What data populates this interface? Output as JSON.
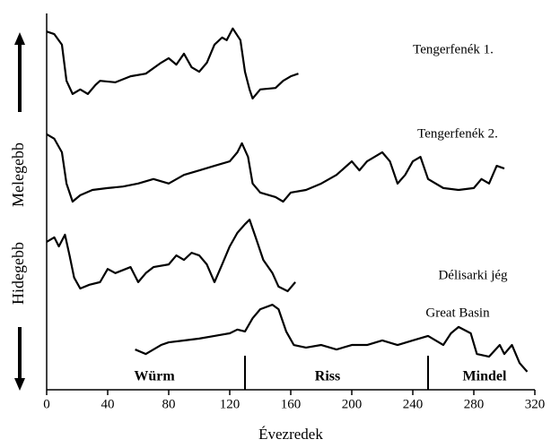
{
  "chart_data": {
    "type": "line",
    "x_label": "Évezredek",
    "y_label_low": "Hidegebb",
    "y_label_high": "Melegebb",
    "xlim": [
      0,
      320
    ],
    "xticks": [
      0,
      40,
      80,
      120,
      160,
      200,
      240,
      280,
      320
    ],
    "ylim": [
      0,
      100
    ],
    "boundaries": [
      130,
      250
    ],
    "stages": [
      "Würm",
      "Riss",
      "Mindel"
    ],
    "series": [
      {
        "name": "Tengerfenék 1.",
        "color": "#000000",
        "x": [
          0,
          5,
          10,
          13,
          17,
          22,
          27,
          32,
          35,
          45,
          55,
          65,
          75,
          80,
          85,
          90,
          95,
          100,
          105,
          110,
          115,
          118,
          122,
          127,
          130,
          133,
          135,
          140,
          150,
          155,
          160,
          165
        ],
        "values": [
          95.2,
          94.5,
          91.7,
          82.1,
          78.6,
          79.8,
          78.6,
          81,
          82.1,
          81.7,
          83.3,
          84,
          86.9,
          88.1,
          86.4,
          89.3,
          85.7,
          84.5,
          86.9,
          91.7,
          93.6,
          92.9,
          96,
          92.9,
          84.5,
          79.8,
          77.4,
          79.8,
          80.2,
          82.1,
          83.3,
          84
        ]
      },
      {
        "name": "Tengerfenék 2.",
        "color": "#000000",
        "x": [
          0,
          5,
          10,
          13,
          17,
          22,
          30,
          40,
          50,
          60,
          70,
          80,
          90,
          100,
          110,
          120,
          125,
          128,
          132,
          135,
          140,
          150,
          155,
          160,
          170,
          180,
          190,
          200,
          205,
          210,
          220,
          225,
          230,
          235,
          240,
          245,
          250,
          260,
          270,
          280,
          285,
          290,
          295,
          300
        ],
        "values": [
          67.9,
          66.7,
          63.1,
          54.8,
          50,
          51.7,
          53.1,
          53.6,
          54,
          54.8,
          56,
          54.8,
          57.1,
          58.3,
          59.5,
          60.7,
          63.1,
          65.5,
          61.9,
          54.8,
          52.4,
          51.2,
          50,
          52.4,
          53.1,
          54.8,
          57.1,
          60.7,
          58.3,
          60.7,
          63.1,
          60.7,
          54.8,
          57.1,
          60.7,
          61.9,
          56,
          53.6,
          53.1,
          53.6,
          56,
          54.8,
          59.5,
          58.8
        ]
      },
      {
        "name": "Délisarki jég",
        "color": "#000000",
        "x": [
          0,
          5,
          8,
          12,
          15,
          18,
          22,
          28,
          35,
          40,
          45,
          55,
          60,
          65,
          70,
          80,
          85,
          90,
          95,
          100,
          105,
          110,
          115,
          120,
          125,
          130,
          133,
          137,
          142,
          148,
          152,
          158,
          163
        ],
        "values": [
          39.3,
          40.5,
          38.1,
          41.2,
          35.7,
          29.8,
          26.9,
          27.9,
          28.6,
          32.1,
          31,
          32.6,
          28.6,
          31,
          32.6,
          33.3,
          35.7,
          34.5,
          36.4,
          35.7,
          33.3,
          28.6,
          33.3,
          38.1,
          41.7,
          44,
          45.2,
          40.5,
          34.5,
          31,
          27.4,
          26.2,
          28.6
        ]
      },
      {
        "name": "Great Basin",
        "color": "#000000",
        "x": [
          58,
          65,
          70,
          75,
          80,
          90,
          100,
          110,
          120,
          125,
          130,
          135,
          140,
          148,
          152,
          157,
          162,
          170,
          180,
          190,
          200,
          210,
          220,
          230,
          240,
          250,
          260,
          265,
          270,
          278,
          282,
          290,
          297,
          300,
          305,
          310,
          315
        ],
        "values": [
          10.7,
          9.5,
          10.7,
          11.9,
          12.6,
          13.1,
          13.6,
          14.3,
          15,
          16,
          15.5,
          19,
          21.4,
          22.6,
          21.4,
          15.5,
          11.9,
          11.2,
          11.9,
          10.7,
          11.9,
          11.9,
          13.1,
          11.9,
          13.1,
          14.3,
          11.9,
          15,
          16.7,
          15,
          9.5,
          8.8,
          11.9,
          9.5,
          11.9,
          7.1,
          4.8
        ]
      }
    ]
  }
}
